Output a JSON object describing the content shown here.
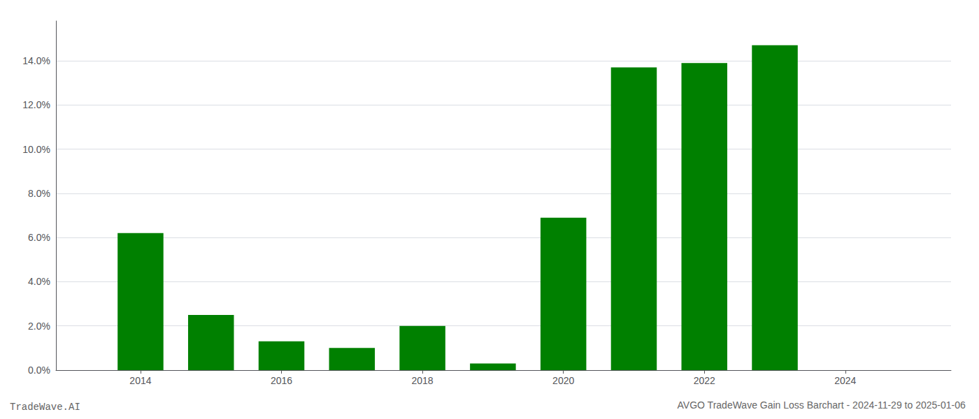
{
  "chart_data": {
    "type": "bar",
    "title": "AVGO TradeWave Gain Loss Barchart - 2024-11-29 to 2025-01-06",
    "annotations": [
      "TradeWave.AI"
    ],
    "x": [
      2014,
      2015,
      2016,
      2017,
      2018,
      2019,
      2020,
      2021,
      2022,
      2023,
      2024
    ],
    "values": [
      0.062,
      0.025,
      0.013,
      0.01,
      0.02,
      0.003,
      0.069,
      0.137,
      0.139,
      0.147,
      0
    ],
    "color": "#008000",
    "xlim": [
      2012.8,
      2025.5
    ],
    "xticks": [
      2014,
      2016,
      2018,
      2020,
      2022,
      2024
    ],
    "ylim": [
      0,
      0.158
    ],
    "yticks": [
      {
        "value": 0,
        "label": "0.0%"
      },
      {
        "value": 0.02,
        "label": "2.0%"
      },
      {
        "value": 0.04,
        "label": "4.0%"
      },
      {
        "value": 0.06,
        "label": "6.0%"
      },
      {
        "value": 0.08,
        "label": "8.0%"
      },
      {
        "value": 0.1,
        "label": "10.0%"
      },
      {
        "value": 0.12,
        "label": "12.0%"
      },
      {
        "value": 0.14,
        "label": "14.0%"
      }
    ],
    "grid": true
  }
}
